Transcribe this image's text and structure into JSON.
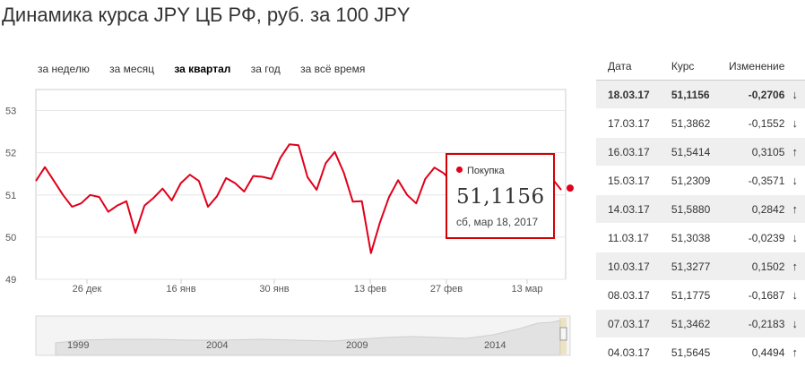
{
  "title": "Динамика курса JPY ЦБ РФ, руб. за 100 JPY",
  "period_tabs": [
    {
      "label": "за неделю",
      "active": false
    },
    {
      "label": "за месяц",
      "active": false
    },
    {
      "label": "за квартал",
      "active": true
    },
    {
      "label": "за год",
      "active": false
    },
    {
      "label": "за всё время",
      "active": false
    }
  ],
  "colors": {
    "series": "#e0001b",
    "up": "#3cb043",
    "down": "#e0001b"
  },
  "chart_data": {
    "type": "line",
    "ylim": [
      49,
      53.5
    ],
    "yticks": [
      "49",
      "50",
      "51",
      "52",
      "53"
    ],
    "xticks": [
      "26 дек",
      "16 янв",
      "30 янв",
      "13 фев",
      "27 фев",
      "13 мар"
    ],
    "grid": true,
    "series": [
      {
        "name": "Покупка",
        "values": [
          51.33,
          51.66,
          51.33,
          51.0,
          50.72,
          50.8,
          51.0,
          50.95,
          50.6,
          50.75,
          50.85,
          50.1,
          50.75,
          50.93,
          51.15,
          50.87,
          51.28,
          51.48,
          51.33,
          50.72,
          50.97,
          51.4,
          51.28,
          51.08,
          51.45,
          51.43,
          51.38,
          51.88,
          52.2,
          52.18,
          51.42,
          51.12,
          51.75,
          52.02,
          51.53,
          50.84,
          50.85,
          49.62,
          50.35,
          50.95,
          51.35,
          51.0,
          50.8,
          51.38,
          51.65,
          51.52,
          51.3,
          51.45,
          51.0,
          51.2,
          50.97,
          51.32,
          51.5,
          51.6,
          51.4,
          51.28,
          51.5,
          51.39,
          51.12
        ]
      }
    ]
  },
  "navigator": {
    "years": [
      "1999",
      "2004",
      "2009",
      "2014"
    ]
  },
  "tooltip": {
    "series_label": "Покупка",
    "value": "51,1156",
    "date": "сб, мар 18, 2017"
  },
  "table": {
    "headers": [
      "Дата",
      "Курс",
      "Изменение"
    ],
    "rows": [
      {
        "date": "18.03.17",
        "rate": "51,1156",
        "change": "-0,2706",
        "dir": "down"
      },
      {
        "date": "17.03.17",
        "rate": "51,3862",
        "change": "-0,1552",
        "dir": "down"
      },
      {
        "date": "16.03.17",
        "rate": "51,5414",
        "change": "0,3105",
        "dir": "up"
      },
      {
        "date": "15.03.17",
        "rate": "51,2309",
        "change": "-0,3571",
        "dir": "down"
      },
      {
        "date": "14.03.17",
        "rate": "51,5880",
        "change": "0,2842",
        "dir": "up"
      },
      {
        "date": "11.03.17",
        "rate": "51,3038",
        "change": "-0,0239",
        "dir": "down"
      },
      {
        "date": "10.03.17",
        "rate": "51,3277",
        "change": "0,1502",
        "dir": "up"
      },
      {
        "date": "08.03.17",
        "rate": "51,1775",
        "change": "-0,1687",
        "dir": "down"
      },
      {
        "date": "07.03.17",
        "rate": "51,3462",
        "change": "-0,2183",
        "dir": "down"
      },
      {
        "date": "04.03.17",
        "rate": "51,5645",
        "change": "0,4494",
        "dir": "up"
      }
    ]
  }
}
